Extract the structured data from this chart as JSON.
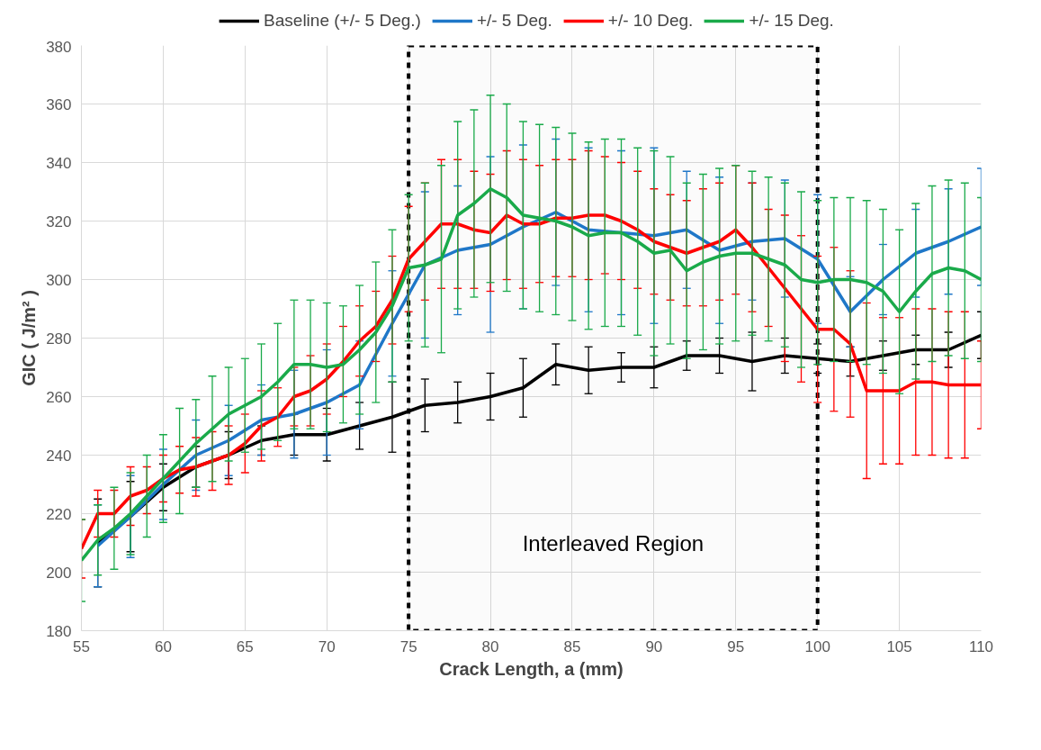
{
  "chart_data": {
    "type": "line",
    "xlabel": "Crack Length, a (mm)",
    "ylabel": "GIC ( J/m² )",
    "xlim": [
      55,
      110
    ],
    "xticks": [
      55,
      60,
      65,
      70,
      75,
      80,
      85,
      90,
      95,
      100,
      105,
      110
    ],
    "ylim": [
      180,
      380
    ],
    "yticks": [
      180,
      200,
      220,
      240,
      260,
      280,
      300,
      320,
      340,
      360,
      380
    ],
    "grid": true,
    "legend": "top",
    "marker": "none",
    "line_style": "solid",
    "bands": [
      {
        "axis": "x",
        "from": 75,
        "to": 100,
        "label": "Interleaved Region",
        "color": "#000000"
      }
    ],
    "series": [
      {
        "name": "Baseline (+/- 5 Deg.)",
        "color": "#000000",
        "x": [
          56,
          58,
          60,
          62,
          64,
          66,
          68,
          70,
          72,
          74,
          76,
          78,
          80,
          82,
          84,
          86,
          88,
          90,
          92,
          94,
          96,
          98,
          100,
          102,
          104,
          106,
          108,
          110
        ],
        "values": [
          210,
          219,
          229,
          236,
          240,
          245,
          247,
          247,
          250,
          253,
          257,
          258,
          260,
          263,
          271,
          269,
          270,
          270,
          274,
          274,
          272,
          274,
          273,
          272,
          274,
          276,
          276,
          281
        ],
        "errors": [
          15,
          12,
          8,
          7,
          8,
          5,
          7,
          9,
          8,
          12,
          9,
          7,
          8,
          10,
          7,
          8,
          5,
          7,
          5,
          6,
          10,
          6,
          5,
          5,
          5,
          5,
          6,
          8
        ]
      },
      {
        "name": "+/- 5 Deg.",
        "color": "#1f77c8",
        "x": [
          56,
          58,
          60,
          62,
          64,
          66,
          68,
          70,
          72,
          74,
          76,
          78,
          80,
          82,
          84,
          86,
          88,
          90,
          92,
          94,
          96,
          98,
          100,
          102,
          104,
          106,
          108,
          110
        ],
        "values": [
          209,
          219,
          230,
          240,
          245,
          252,
          254,
          258,
          264,
          285,
          305,
          310,
          312,
          318,
          323,
          317,
          316,
          315,
          317,
          310,
          313,
          314,
          307,
          289,
          300,
          309,
          313,
          318
        ],
        "errors": [
          14,
          14,
          12,
          12,
          12,
          12,
          15,
          18,
          15,
          18,
          25,
          22,
          30,
          28,
          25,
          28,
          28,
          30,
          20,
          25,
          20,
          20,
          22,
          12,
          12,
          15,
          18,
          20
        ]
      },
      {
        "name": "+/- 10 Deg.",
        "color": "#ff0000",
        "x": [
          55,
          56,
          57,
          58,
          59,
          60,
          61,
          62,
          63,
          64,
          65,
          66,
          67,
          68,
          69,
          70,
          71,
          72,
          73,
          74,
          75,
          76,
          77,
          78,
          79,
          80,
          81,
          82,
          83,
          84,
          85,
          86,
          87,
          88,
          89,
          90,
          91,
          92,
          93,
          94,
          95,
          96,
          97,
          98,
          99,
          100,
          101,
          102,
          103,
          104,
          105,
          106,
          107,
          108,
          109,
          110
        ],
        "values": [
          208,
          220,
          220,
          226,
          228,
          232,
          235,
          236,
          238,
          240,
          244,
          250,
          253,
          260,
          262,
          266,
          272,
          279,
          284,
          293,
          307,
          313,
          319,
          319,
          317,
          316,
          322,
          319,
          319,
          321,
          321,
          322,
          322,
          320,
          317,
          313,
          311,
          309,
          311,
          313,
          317,
          311,
          304,
          297,
          290,
          283,
          283,
          278,
          262,
          262,
          262,
          265,
          265,
          264,
          264,
          264
        ],
        "errors": [
          10,
          8,
          8,
          10,
          8,
          8,
          8,
          10,
          10,
          10,
          10,
          12,
          10,
          10,
          12,
          12,
          12,
          12,
          12,
          15,
          18,
          20,
          22,
          22,
          20,
          20,
          22,
          22,
          20,
          20,
          20,
          22,
          20,
          20,
          20,
          18,
          18,
          18,
          20,
          20,
          22,
          22,
          20,
          25,
          25,
          25,
          28,
          25,
          30,
          25,
          25,
          25,
          25,
          25,
          25,
          15
        ]
      },
      {
        "name": "+/- 15 Deg.",
        "color": "#1aaa4a",
        "x": [
          55,
          56,
          57,
          58,
          59,
          60,
          61,
          62,
          63,
          64,
          65,
          66,
          67,
          68,
          69,
          70,
          71,
          72,
          73,
          74,
          75,
          76,
          77,
          78,
          79,
          80,
          81,
          82,
          83,
          84,
          85,
          86,
          87,
          88,
          89,
          90,
          91,
          92,
          93,
          94,
          95,
          96,
          97,
          98,
          99,
          100,
          101,
          102,
          103,
          104,
          105,
          106,
          107,
          108,
          109,
          110
        ],
        "values": [
          204,
          211,
          215,
          220,
          226,
          232,
          238,
          244,
          249,
          254,
          257,
          260,
          265,
          271,
          271,
          270,
          271,
          276,
          282,
          291,
          304,
          305,
          307,
          322,
          326,
          331,
          328,
          322,
          321,
          320,
          318,
          315,
          316,
          316,
          313,
          309,
          310,
          303,
          306,
          308,
          309,
          309,
          307,
          305,
          300,
          299,
          300,
          300,
          299,
          296,
          289,
          296,
          302,
          304,
          303,
          300
        ],
        "errors": [
          14,
          12,
          14,
          14,
          14,
          15,
          18,
          15,
          18,
          16,
          16,
          18,
          20,
          22,
          22,
          22,
          20,
          22,
          24,
          26,
          25,
          28,
          32,
          32,
          32,
          32,
          32,
          32,
          32,
          32,
          32,
          32,
          32,
          32,
          32,
          35,
          32,
          30,
          30,
          30,
          30,
          28,
          28,
          28,
          30,
          28,
          28,
          28,
          28,
          28,
          28,
          30,
          30,
          30,
          30,
          28
        ]
      }
    ]
  }
}
